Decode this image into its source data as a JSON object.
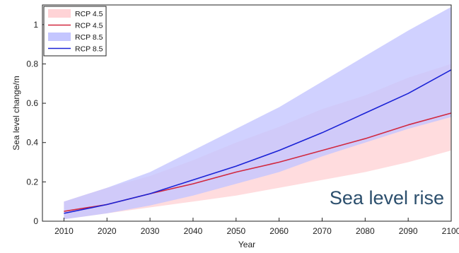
{
  "chart_data": {
    "type": "area",
    "xlabel": "Year",
    "ylabel": "Sea level change/m",
    "xlim": [
      2005,
      2100
    ],
    "ylim": [
      0,
      1.1
    ],
    "x_ticks": [
      "2010",
      "2020",
      "2030",
      "2040",
      "2050",
      "2060",
      "2070",
      "2080",
      "2090",
      "2100"
    ],
    "y_ticks": [
      "0",
      "0.2",
      "0.4",
      "0.6",
      "0.8",
      "1"
    ],
    "legend_position": "top-left",
    "grid": false,
    "x": [
      2010,
      2020,
      2030,
      2040,
      2050,
      2060,
      2070,
      2080,
      2090,
      2100
    ],
    "series": [
      {
        "name": "RCP 4.5",
        "style": "band",
        "color": "#ffd3d6",
        "lower": [
          0.01,
          0.04,
          0.07,
          0.1,
          0.13,
          0.17,
          0.21,
          0.25,
          0.3,
          0.36
        ],
        "upper": [
          0.1,
          0.17,
          0.23,
          0.31,
          0.4,
          0.48,
          0.57,
          0.64,
          0.73,
          0.8
        ]
      },
      {
        "name": "RCP 4.5",
        "style": "line",
        "color": "#d1283f",
        "values": [
          0.05,
          0.085,
          0.14,
          0.19,
          0.25,
          0.3,
          0.36,
          0.42,
          0.49,
          0.55
        ]
      },
      {
        "name": "RCP 8.5",
        "style": "band",
        "color": "#c4c6ff",
        "lower": [
          0.01,
          0.04,
          0.08,
          0.13,
          0.19,
          0.25,
          0.33,
          0.4,
          0.47,
          0.53
        ],
        "upper": [
          0.1,
          0.17,
          0.25,
          0.36,
          0.47,
          0.58,
          0.71,
          0.84,
          0.97,
          1.09
        ]
      },
      {
        "name": "RCP 8.5",
        "style": "line",
        "color": "#1a22d6",
        "values": [
          0.04,
          0.085,
          0.14,
          0.21,
          0.28,
          0.36,
          0.45,
          0.55,
          0.65,
          0.77
        ]
      }
    ],
    "annotation": {
      "text": "Sea level rise",
      "color": "#2c4f6d"
    }
  }
}
